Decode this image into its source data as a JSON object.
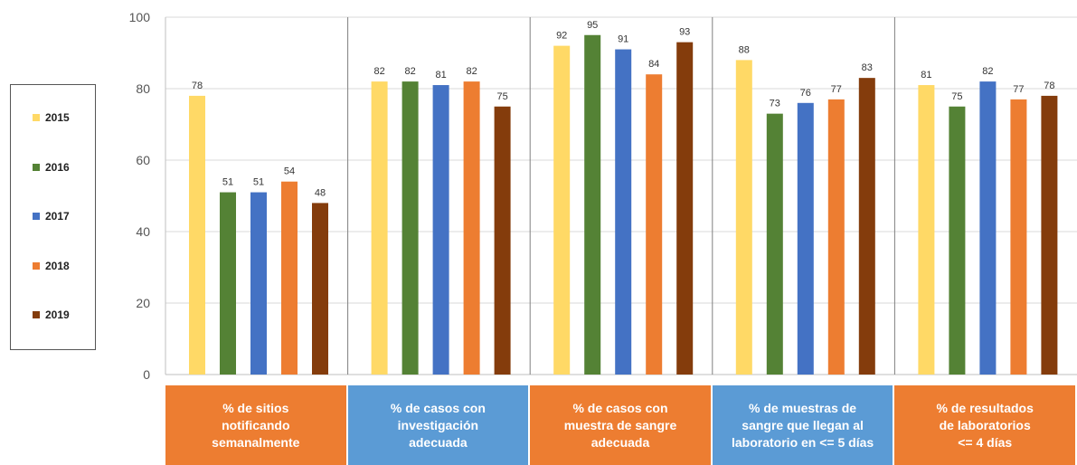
{
  "chart_data": {
    "type": "bar",
    "categories": [
      "% de sitios\nnotificando\nsemanalmente",
      "% de casos con\ninvestigación\nadecuada",
      "% de casos con\nmuestra de sangre\nadecuada",
      "% de muestras de\nsangre que llegan al\nlaboratorio  en <= 5 días",
      "% de resultados\nde laboratorios\n<= 4 días"
    ],
    "category_colors": [
      "#ED7D31",
      "#5B9BD5",
      "#ED7D31",
      "#5B9BD5",
      "#ED7D31"
    ],
    "series": [
      {
        "name": "2015",
        "color": "#FFD966",
        "values": [
          78,
          82,
          92,
          88,
          81
        ]
      },
      {
        "name": "2016",
        "color": "#548235",
        "values": [
          51,
          82,
          95,
          73,
          75
        ]
      },
      {
        "name": "2017",
        "color": "#4472C4",
        "values": [
          51,
          81,
          91,
          76,
          82
        ]
      },
      {
        "name": "2018",
        "color": "#ED7D31",
        "values": [
          54,
          82,
          84,
          77,
          77
        ]
      },
      {
        "name": "2019",
        "color": "#843C0C",
        "values": [
          48,
          75,
          93,
          83,
          78
        ]
      }
    ],
    "ylim": [
      0,
      100
    ],
    "yticks": [
      0,
      20,
      40,
      60,
      80,
      100
    ],
    "grid": true,
    "legend": "left",
    "title": "",
    "xlabel": "",
    "ylabel": ""
  }
}
